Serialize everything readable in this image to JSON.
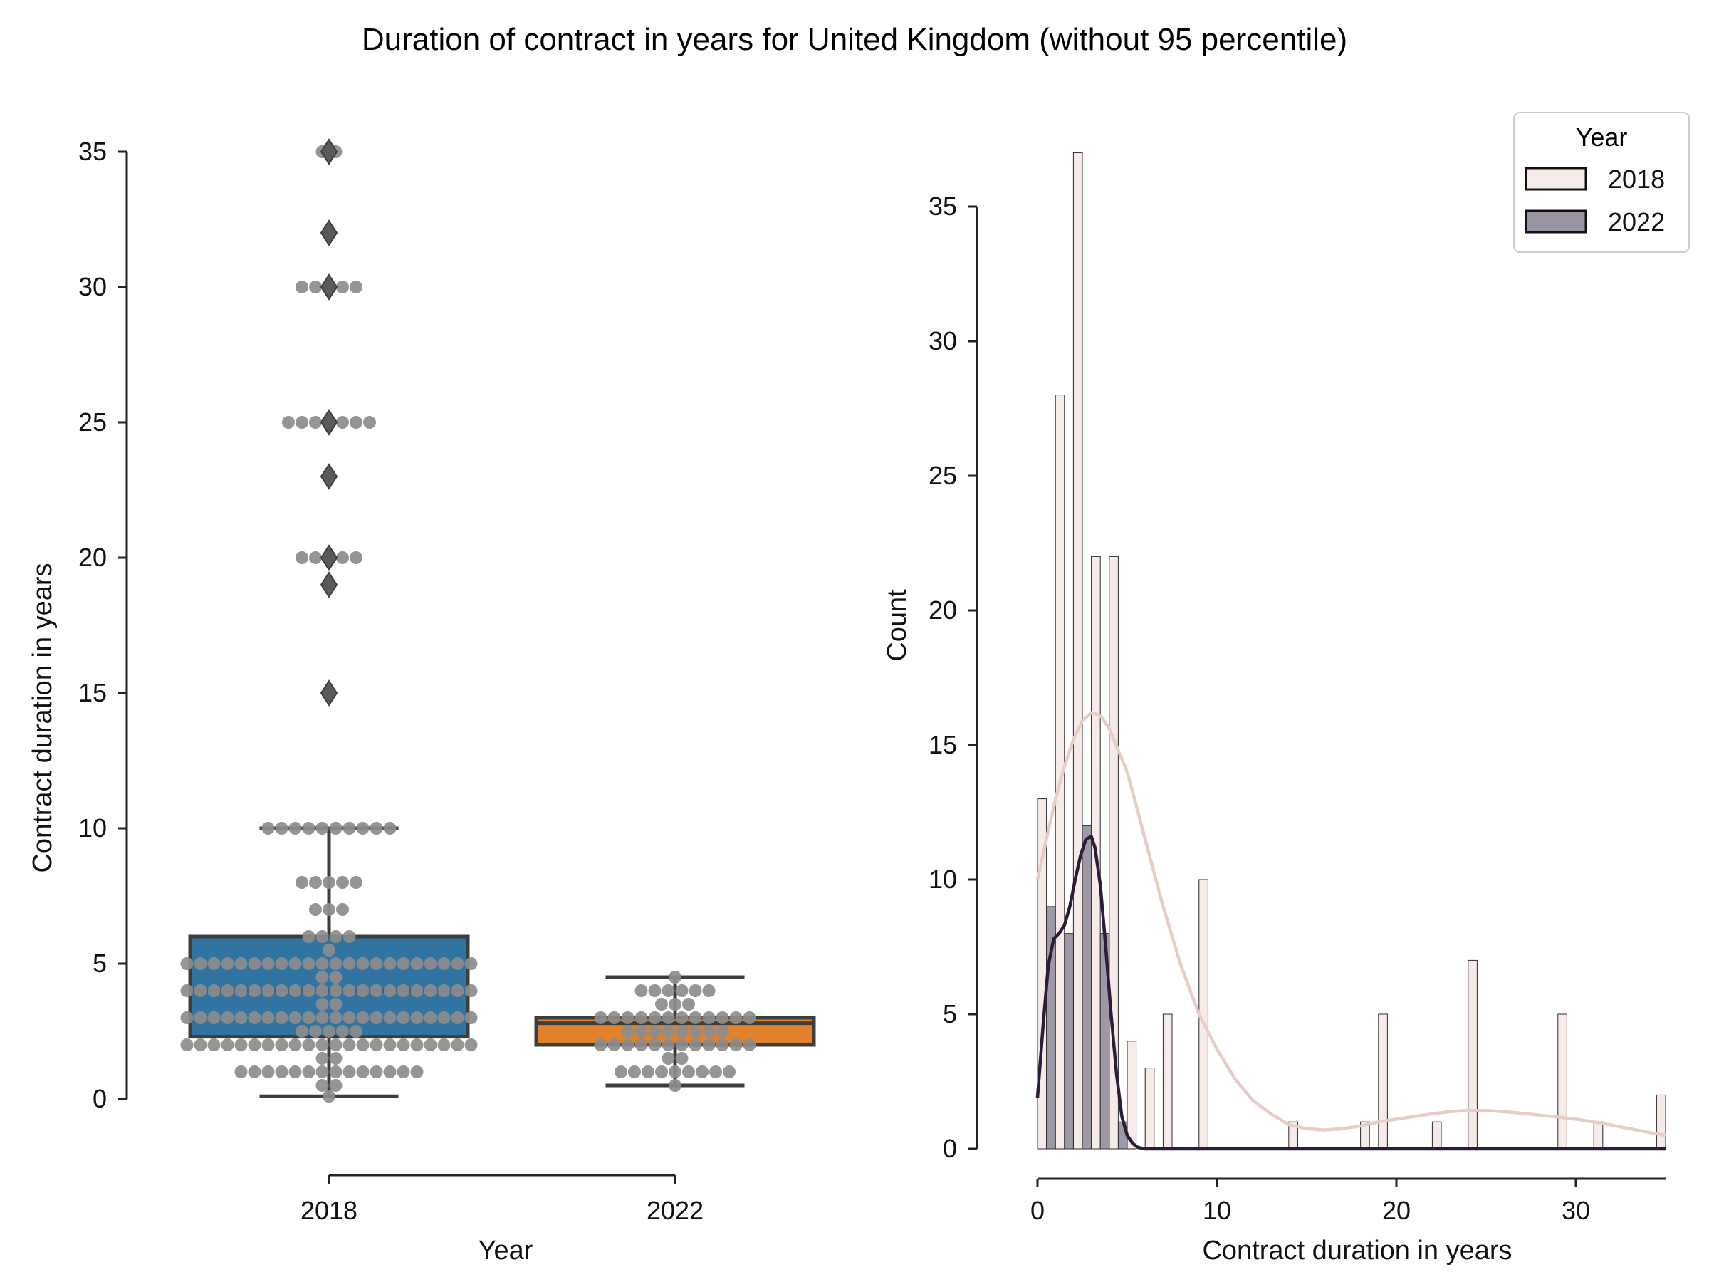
{
  "figure": {
    "title": "Duration of contract in years for United Kingdom (without 95 percentile)"
  },
  "chart_data": [
    {
      "type": "box",
      "subtype": "box plot with swarm overlay",
      "xlabel": "Year",
      "ylabel": "Contract duration in years",
      "ylim": [
        0,
        35
      ],
      "y_ticks": [
        0,
        5,
        10,
        15,
        20,
        25,
        30,
        35
      ],
      "categories": [
        "2018",
        "2022"
      ],
      "colors": {
        "2018": "#3274a1",
        "2022": "#e1812c",
        "swarm_points": "#8c8c8c",
        "fliers": "#5a5a5a"
      },
      "boxes": [
        {
          "category": "2018",
          "whisker_low": 0.1,
          "q1": 2.3,
          "median": 4,
          "q3": 6,
          "whisker_high": 10,
          "fliers": [
            15,
            19,
            20,
            23,
            25,
            30,
            32,
            35
          ]
        },
        {
          "category": "2022",
          "whisker_low": 0.5,
          "q1": 2,
          "median": 2.8,
          "q3": 3,
          "whisker_high": 4.5,
          "fliers": []
        }
      ],
      "swarm": [
        {
          "category": "2018",
          "levels": [
            {
              "value": 0.1,
              "count": 1
            },
            {
              "value": 0.5,
              "count": 2
            },
            {
              "value": 1,
              "count": 14
            },
            {
              "value": 1.5,
              "count": 2
            },
            {
              "value": 2,
              "count": 22
            },
            {
              "value": 2.5,
              "count": 5
            },
            {
              "value": 3,
              "count": 22
            },
            {
              "value": 3.5,
              "count": 2
            },
            {
              "value": 4,
              "count": 22
            },
            {
              "value": 4.5,
              "count": 2
            },
            {
              "value": 5,
              "count": 22
            },
            {
              "value": 5.5,
              "count": 1
            },
            {
              "value": 6,
              "count": 4
            },
            {
              "value": 7,
              "count": 3
            },
            {
              "value": 8,
              "count": 5
            },
            {
              "value": 10,
              "count": 10
            },
            {
              "value": 15,
              "count": 1
            },
            {
              "value": 19,
              "count": 1
            },
            {
              "value": 20,
              "count": 5
            },
            {
              "value": 23,
              "count": 1
            },
            {
              "value": 25,
              "count": 7
            },
            {
              "value": 30,
              "count": 5
            },
            {
              "value": 32,
              "count": 1
            },
            {
              "value": 35,
              "count": 2
            }
          ]
        },
        {
          "category": "2022",
          "levels": [
            {
              "value": 0.5,
              "count": 1
            },
            {
              "value": 1,
              "count": 9
            },
            {
              "value": 1.5,
              "count": 2
            },
            {
              "value": 2,
              "count": 12
            },
            {
              "value": 2.5,
              "count": 8
            },
            {
              "value": 3,
              "count": 12
            },
            {
              "value": 3.5,
              "count": 3
            },
            {
              "value": 4,
              "count": 6
            },
            {
              "value": 4.5,
              "count": 1
            }
          ]
        }
      ]
    },
    {
      "type": "bar",
      "subtype": "histogram with KDE",
      "xlabel": "Contract duration in years",
      "ylabel": "Count",
      "xlim": [
        -0.4,
        35
      ],
      "ylim": [
        0,
        37
      ],
      "x_ticks": [
        0,
        10,
        20,
        30
      ],
      "y_ticks": [
        0,
        5,
        10,
        15,
        20,
        25,
        30,
        35
      ],
      "bin_width": 0.5,
      "legend": {
        "title": "Year",
        "position": "top-right",
        "entries": [
          "2018",
          "2022"
        ]
      },
      "colors": {
        "2018_fill": "#f6ebe8",
        "2018_kde": "#e8cdc6",
        "2022_fill": "#9a93a2",
        "2022_kde": "#2b1d3a"
      },
      "series": [
        {
          "name": "2018",
          "bins": [
            [
              0,
              13
            ],
            [
              1,
              28
            ],
            [
              2,
              37
            ],
            [
              3,
              22
            ],
            [
              4,
              22
            ],
            [
              5,
              4
            ],
            [
              6,
              3
            ],
            [
              7,
              5
            ],
            [
              9,
              10
            ],
            [
              14,
              1
            ],
            [
              18,
              1
            ],
            [
              19,
              5
            ],
            [
              22,
              1
            ],
            [
              24,
              7
            ],
            [
              29,
              5
            ],
            [
              31,
              1
            ],
            [
              34.5,
              2
            ]
          ]
        },
        {
          "name": "2022",
          "bins": [
            [
              0.5,
              9
            ],
            [
              1.5,
              8
            ],
            [
              2.5,
              12
            ],
            [
              3.5,
              8
            ],
            [
              4.5,
              1
            ]
          ]
        }
      ],
      "kde": [
        {
          "name": "2018",
          "points": [
            [
              0,
              10
            ],
            [
              0.5,
              11.5
            ],
            [
              1,
              13
            ],
            [
              1.5,
              14.2
            ],
            [
              2,
              15.2
            ],
            [
              2.5,
              15.9
            ],
            [
              3,
              16.2
            ],
            [
              3.5,
              16.1
            ],
            [
              4,
              15.6
            ],
            [
              5,
              14
            ],
            [
              6,
              11.5
            ],
            [
              7,
              9
            ],
            [
              8,
              6.8
            ],
            [
              9,
              5
            ],
            [
              10,
              3.7
            ],
            [
              11,
              2.6
            ],
            [
              12,
              1.8
            ],
            [
              13,
              1.3
            ],
            [
              14,
              0.9
            ],
            [
              15,
              0.75
            ],
            [
              16,
              0.7
            ],
            [
              17,
              0.75
            ],
            [
              18,
              0.85
            ],
            [
              19,
              1
            ],
            [
              20,
              1.1
            ],
            [
              21,
              1.2
            ],
            [
              22,
              1.3
            ],
            [
              23,
              1.38
            ],
            [
              24,
              1.42
            ],
            [
              25,
              1.42
            ],
            [
              26,
              1.38
            ],
            [
              27,
              1.32
            ],
            [
              28,
              1.25
            ],
            [
              29,
              1.18
            ],
            [
              30,
              1.1
            ],
            [
              31,
              1
            ],
            [
              32,
              0.88
            ],
            [
              33,
              0.75
            ],
            [
              34,
              0.62
            ],
            [
              35,
              0.5
            ]
          ]
        },
        {
          "name": "2022",
          "points": [
            [
              0,
              1.9
            ],
            [
              0.3,
              4.5
            ],
            [
              0.6,
              6.8
            ],
            [
              0.9,
              7.8
            ],
            [
              1.2,
              8
            ],
            [
              1.5,
              8.3
            ],
            [
              1.8,
              9
            ],
            [
              2.1,
              10
            ],
            [
              2.4,
              10.9
            ],
            [
              2.7,
              11.5
            ],
            [
              3,
              11.6
            ],
            [
              3.2,
              11.2
            ],
            [
              3.5,
              9.8
            ],
            [
              3.8,
              7.5
            ],
            [
              4.1,
              5
            ],
            [
              4.4,
              2.8
            ],
            [
              4.7,
              1.2
            ],
            [
              5,
              0.5
            ],
            [
              5.3,
              0.2
            ],
            [
              5.6,
              0.05
            ],
            [
              6,
              0
            ],
            [
              10,
              0
            ],
            [
              20,
              0
            ],
            [
              35,
              0
            ]
          ]
        }
      ]
    }
  ]
}
